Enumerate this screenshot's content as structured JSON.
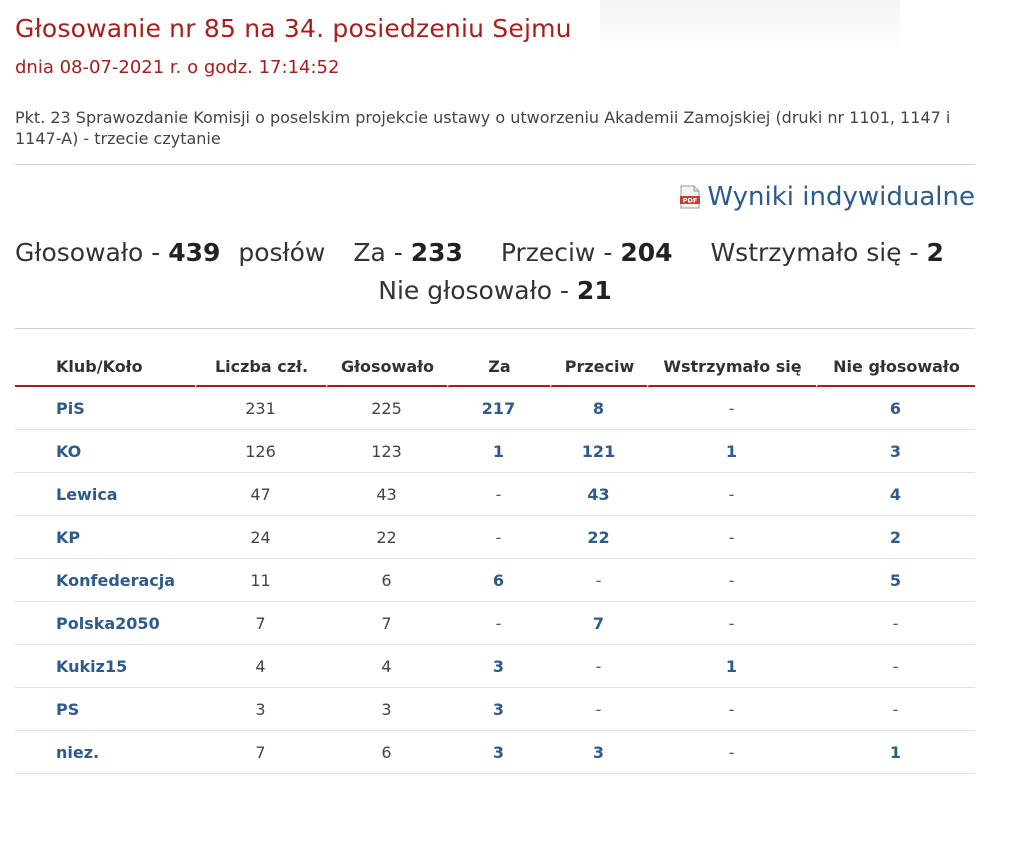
{
  "title": "Głosowanie nr 85 na 34. posiedzeniu Sejmu",
  "date": "dnia 08-07-2021 r. o godz. 17:14:52",
  "description": "Pkt. 23 Sprawozdanie Komisji o poselskim projekcie ustawy o utworzeniu Akademii Zamojskiej (druki nr 1101, 1147 i 1147-A) - trzecie czytanie",
  "pdf_link": {
    "label": "Wyniki indywidualne",
    "icon": "pdf-icon"
  },
  "summary": {
    "voted_label": "Głosowało - ",
    "voted": "439",
    "voted_suffix": " posłów",
    "for_label": "Za - ",
    "for": "233",
    "against_label": "Przeciw - ",
    "against": "204",
    "abstained_label": "Wstrzymało się - ",
    "abstained": "2",
    "not_voted_label": "Nie głosowało - ",
    "not_voted": "21"
  },
  "table": {
    "headers": [
      "Klub/Koło",
      "Liczba czł.",
      "Głosowało",
      "Za",
      "Przeciw",
      "Wstrzymało się",
      "Nie głosowało"
    ],
    "rows": [
      [
        "PiS",
        "231",
        "225",
        "217",
        "8",
        "-",
        "6"
      ],
      [
        "KO",
        "126",
        "123",
        "1",
        "121",
        "1",
        "3"
      ],
      [
        "Lewica",
        "47",
        "43",
        "-",
        "43",
        "-",
        "4"
      ],
      [
        "KP",
        "24",
        "22",
        "-",
        "22",
        "-",
        "2"
      ],
      [
        "Konfederacja",
        "11",
        "6",
        "6",
        "-",
        "-",
        "5"
      ],
      [
        "Polska2050",
        "7",
        "7",
        "-",
        "7",
        "-",
        "-"
      ],
      [
        "Kukiz15",
        "4",
        "4",
        "3",
        "-",
        "1",
        "-"
      ],
      [
        "PS",
        "3",
        "3",
        "3",
        "-",
        "-",
        "-"
      ],
      [
        "niez.",
        "7",
        "6",
        "3",
        "3",
        "-",
        "1"
      ]
    ]
  },
  "colors": {
    "heading": "#a81d1d",
    "link": "#2f5b8a"
  }
}
